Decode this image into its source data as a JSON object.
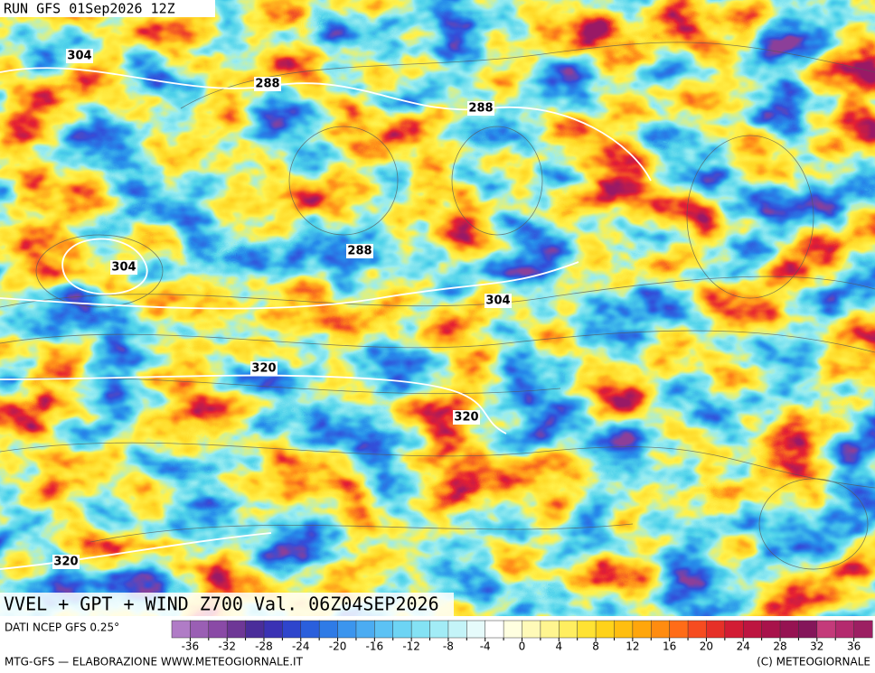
{
  "header": {
    "run": "RUN GFS 01Sep2026 12Z"
  },
  "map": {
    "title": "VVEL + GPT + WIND Z700 Val. 06Z04SEP2026",
    "contour_labels": [
      "304",
      "288",
      "288",
      "288",
      "304",
      "304",
      "320",
      "320",
      "320"
    ]
  },
  "colorbar": {
    "source": "DATI NCEP GFS 0.25°",
    "colors": [
      "#b07cc6",
      "#9a5fb4",
      "#8a4aa6",
      "#6e3796",
      "#4a2d9a",
      "#3a32b4",
      "#2e45cc",
      "#2a5fdc",
      "#2f7be6",
      "#3b95ee",
      "#4bacf2",
      "#5cc2f4",
      "#6dd4f4",
      "#84e2f4",
      "#a2ecf6",
      "#c4f4f8",
      "#e6fbfb",
      "#ffffff",
      "#ffffe0",
      "#fffab8",
      "#fff590",
      "#ffee60",
      "#ffe233",
      "#ffd21a",
      "#ffbe10",
      "#ffa60c",
      "#ff8c10",
      "#ff6c18",
      "#f64c20",
      "#e63028",
      "#d21c34",
      "#bd1540",
      "#a8124a",
      "#961352",
      "#84165a",
      "#c43a7a",
      "#b42a6e",
      "#9c1f62"
    ],
    "ticks": [
      -36,
      -32,
      -28,
      -24,
      -20,
      -16,
      -12,
      -8,
      -4,
      0,
      4,
      8,
      12,
      16,
      20,
      24,
      28,
      32,
      36
    ],
    "minor_ticks": [
      -34,
      -30,
      -26,
      -22,
      -18,
      -14,
      -10,
      -6,
      -2,
      2,
      6,
      10,
      14,
      18,
      22,
      26,
      30,
      34
    ]
  },
  "footer": {
    "left": "MTG-GFS — ELABORAZIONE WWW.METEOGIORNALE.IT",
    "right": "(C) METEOGIORNALE"
  }
}
